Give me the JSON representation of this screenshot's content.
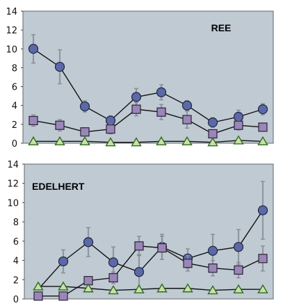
{
  "chart_data": [
    {
      "type": "line",
      "title": "REE",
      "ylim": [
        0,
        14
      ],
      "yticks": [
        0,
        2,
        4,
        6,
        8,
        10,
        12,
        14
      ],
      "x": [
        1,
        2,
        3,
        4,
        5,
        6,
        7,
        8,
        9,
        10
      ],
      "grid": false,
      "background": "#bfcad3",
      "series": [
        {
          "marker": "circle",
          "color": "#5b6aa6",
          "values": [
            10.0,
            8.1,
            3.9,
            2.4,
            4.9,
            5.4,
            4.0,
            2.2,
            2.8,
            3.6
          ],
          "errors": [
            1.5,
            1.8,
            0.6,
            0.5,
            0.9,
            0.8,
            0.5,
            0.5,
            0.7,
            0.6
          ]
        },
        {
          "marker": "square",
          "color": "#9b86b8",
          "values": [
            2.4,
            1.9,
            1.2,
            1.5,
            3.6,
            3.3,
            2.5,
            1.0,
            1.9,
            1.7
          ],
          "errors": [
            0.6,
            0.6,
            0.3,
            0.5,
            0.7,
            0.8,
            0.9,
            0.3,
            0.5,
            0.4
          ]
        },
        {
          "marker": "triangle",
          "color": "#c8e0a8",
          "values": [
            0.2,
            0.2,
            0.2,
            0.1,
            0.1,
            0.2,
            0.2,
            0.1,
            0.3,
            0.2
          ],
          "errors": [
            0,
            0,
            0,
            0,
            0,
            0,
            0,
            0,
            0,
            0
          ]
        }
      ]
    },
    {
      "type": "line",
      "title": "EDELHERT",
      "ylim": [
        0,
        14
      ],
      "yticks": [
        0,
        2,
        4,
        6,
        8,
        10,
        12,
        14
      ],
      "x": [
        1,
        2,
        3,
        4,
        5,
        6,
        7,
        8,
        9,
        10
      ],
      "grid": false,
      "background": "#bfcad3",
      "series": [
        {
          "marker": "circle",
          "color": "#5b6aa6",
          "start": 1,
          "values": [
            null,
            3.9,
            5.9,
            3.8,
            2.8,
            5.4,
            4.2,
            5.0,
            5.4,
            9.2
          ],
          "errors": [
            0,
            1.2,
            1.5,
            1.6,
            1.8,
            1.3,
            1.0,
            1.7,
            1.8,
            3.0
          ]
        },
        {
          "marker": "square",
          "color": "#9b86b8",
          "values": [
            0.3,
            0.3,
            1.9,
            2.2,
            5.5,
            5.3,
            3.7,
            3.2,
            3.0,
            4.2
          ],
          "errors": [
            0,
            0,
            0.4,
            0.6,
            1.0,
            1.2,
            0.8,
            0.8,
            0.8,
            1.3
          ]
        },
        {
          "marker": "triangle",
          "color": "#c8e0a8",
          "values": [
            1.3,
            1.3,
            1.1,
            0.9,
            1.0,
            1.1,
            1.1,
            0.9,
            1.0,
            1.0
          ],
          "errors": [
            0,
            0,
            0,
            0,
            0,
            0,
            0,
            0,
            0,
            0
          ]
        }
      ]
    }
  ]
}
